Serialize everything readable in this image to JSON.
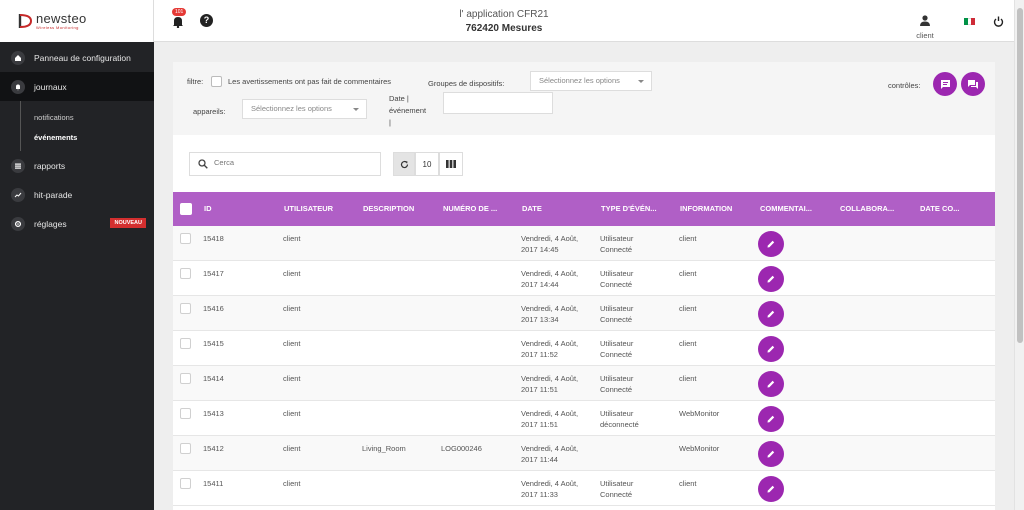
{
  "brand": {
    "name": "newsteo",
    "tagline": "Wireless Monitoring"
  },
  "sidebar": {
    "items": [
      {
        "label": "Panneau de configuration",
        "icon": "home-icon"
      },
      {
        "label": "journaux",
        "icon": "bell-icon",
        "sub": [
          "notifications",
          "événements"
        ]
      },
      {
        "label": "rapports",
        "icon": "reports-icon"
      },
      {
        "label": "hit-parade",
        "icon": "trend-icon"
      },
      {
        "label": "réglages",
        "icon": "gear-icon",
        "badge": "NOUVEAU"
      }
    ]
  },
  "topbar": {
    "notification_count": "101",
    "title": "l' application CFR21",
    "subtitle": "762420 Mesures",
    "user": "client"
  },
  "filters": {
    "filter_label": "filtre:",
    "no_comment_label": "Les avertissements ont pas fait de commentaires",
    "device_groups_label": "Groupes de dispositifs:",
    "device_groups_placeholder": "Sélectionnez les options",
    "devices_label": "appareils:",
    "devices_placeholder": "Sélectionnez les options",
    "date_label_1": "Date |",
    "date_label_2": "événement",
    "date_label_3": "|",
    "controls_label": "contrôles:"
  },
  "toolbar": {
    "search_placeholder": "Cerca",
    "page_size": "10"
  },
  "table": {
    "columns": [
      "ID",
      "UTILISATEUR",
      "DESCRIPTION",
      "NUMÉRO DE ...",
      "DATE",
      "TYPE D'ÉVÉN...",
      "INFORMATION",
      "COMMENTAI...",
      "COLLABORA...",
      "DATE CO..."
    ],
    "rows": [
      {
        "id": "15418",
        "user": "client",
        "description": "",
        "number": "",
        "date1": "Vendredi, 4 Août,",
        "date2": "2017 14:45",
        "type1": "Utilisateur",
        "type2": "Connecté",
        "info": "client"
      },
      {
        "id": "15417",
        "user": "client",
        "description": "",
        "number": "",
        "date1": "Vendredi, 4 Août,",
        "date2": "2017 14:44",
        "type1": "Utilisateur",
        "type2": "Connecté",
        "info": "client"
      },
      {
        "id": "15416",
        "user": "client",
        "description": "",
        "number": "",
        "date1": "Vendredi, 4 Août,",
        "date2": "2017 13:34",
        "type1": "Utilisateur",
        "type2": "Connecté",
        "info": "client"
      },
      {
        "id": "15415",
        "user": "client",
        "description": "",
        "number": "",
        "date1": "Vendredi, 4 Août,",
        "date2": "2017 11:52",
        "type1": "Utilisateur",
        "type2": "Connecté",
        "info": "client"
      },
      {
        "id": "15414",
        "user": "client",
        "description": "",
        "number": "",
        "date1": "Vendredi, 4 Août,",
        "date2": "2017 11:51",
        "type1": "Utilisateur",
        "type2": "Connecté",
        "info": "client"
      },
      {
        "id": "15413",
        "user": "client",
        "description": "",
        "number": "",
        "date1": "Vendredi, 4 Août,",
        "date2": "2017 11:51",
        "type1": "Utilisateur",
        "type2": "déconnecté",
        "info": "WebMonitor"
      },
      {
        "id": "15412",
        "user": "client",
        "description": "Living_Room",
        "number": "LOG000246",
        "date1": "Vendredi, 4 Août,",
        "date2": "2017 11:44",
        "type1": "",
        "type2": "",
        "info": "WebMonitor"
      },
      {
        "id": "15411",
        "user": "client",
        "description": "",
        "number": "",
        "date1": "Vendredi, 4 Août,",
        "date2": "2017 11:33",
        "type1": "Utilisateur",
        "type2": "Connecté",
        "info": "client"
      }
    ]
  },
  "colors": {
    "accent": "#9c27b0",
    "header": "#b05fc6",
    "sidebar": "#222326"
  }
}
